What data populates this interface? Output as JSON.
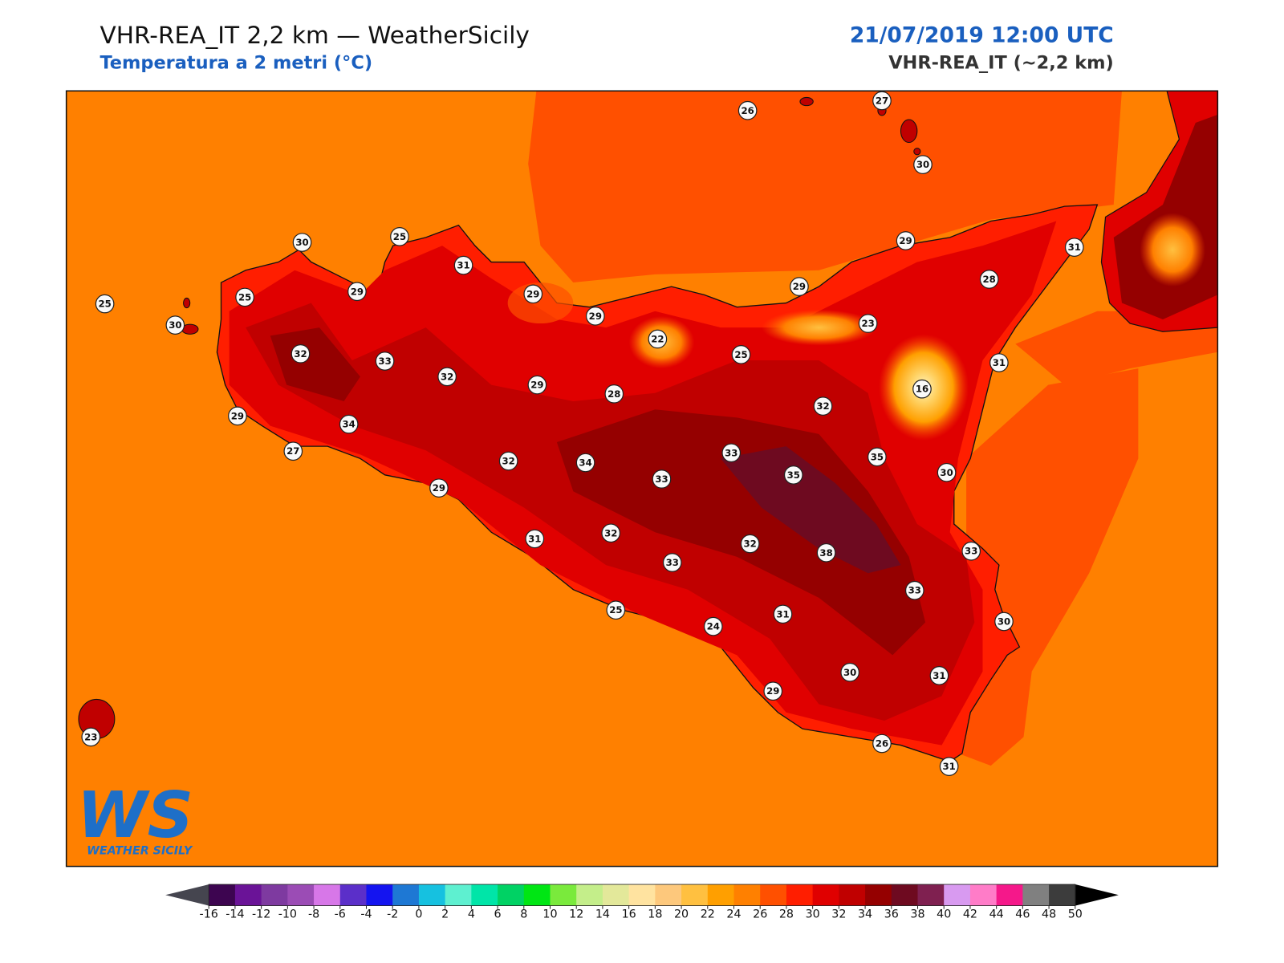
{
  "header": {
    "title": "VHR-REA_IT 2,2 km — WeatherSicily",
    "subtitle": "Temperatura a 2 metri (°C)",
    "datetime": "21/07/2019 12:00 UTC",
    "model": "VHR-REA_IT (~2,2 km)"
  },
  "stations": [
    26,
    27,
    30,
    30,
    25,
    31,
    29,
    25,
    25,
    30,
    29,
    29,
    22,
    29,
    31,
    28,
    29,
    23,
    25,
    31,
    32,
    33,
    32,
    29,
    28,
    16,
    32,
    29,
    34,
    27,
    33,
    35,
    34,
    32,
    33,
    35,
    30,
    29,
    31,
    32,
    32,
    33,
    38,
    33,
    33,
    25,
    24,
    31,
    30,
    30,
    31,
    29,
    26,
    31,
    23
  ],
  "colorbar": {
    "ticks": [
      -16,
      -14,
      -12,
      -10,
      -8,
      -6,
      -4,
      -2,
      0,
      2,
      4,
      6,
      8,
      10,
      12,
      14,
      16,
      18,
      20,
      22,
      24,
      26,
      28,
      30,
      32,
      34,
      36,
      38,
      40,
      42,
      44,
      46,
      48,
      50
    ],
    "colors": [
      "#3d0550",
      "#6a1397",
      "#7e3aa0",
      "#9b4cb5",
      "#d777e8",
      "#5b2fc9",
      "#1414f0",
      "#1e78d4",
      "#16c1e0",
      "#5ef0d0",
      "#00e5a8",
      "#00d264",
      "#00e614",
      "#7aea3c",
      "#c4ee8a",
      "#e3e89a",
      "#ffe3a0",
      "#fdc87c",
      "#ffc040",
      "#ff9f00",
      "#ff8000",
      "#ff5000",
      "#ff1e00",
      "#e00000",
      "#c00000",
      "#950000",
      "#6e0a20",
      "#7f2050",
      "#d89af0",
      "#ff7cc8",
      "#f5188a",
      "#808080",
      "#3c3c3c"
    ],
    "under": "#45454f",
    "over": "#000000"
  },
  "logo": {
    "mark": "WS",
    "text": "WEATHER SICILY"
  }
}
